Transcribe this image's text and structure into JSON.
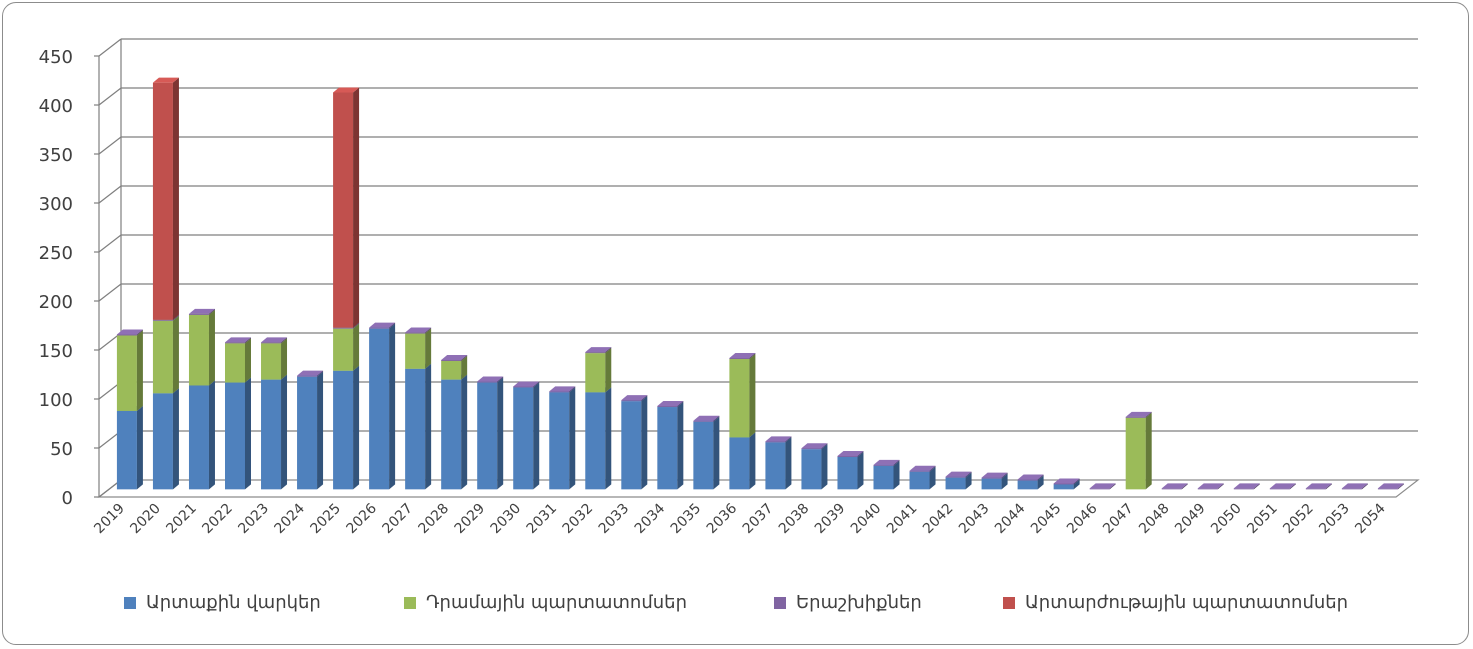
{
  "chart_data": {
    "type": "bar",
    "stacked": true,
    "three_d": true,
    "categories": [
      "2019",
      "2020",
      "2021",
      "2022",
      "2023",
      "2024",
      "2025",
      "2026",
      "2027",
      "2028",
      "2029",
      "2030",
      "2031",
      "2032",
      "2033",
      "2034",
      "2035",
      "2036",
      "2037",
      "2038",
      "2039",
      "2040",
      "2041",
      "2042",
      "2043",
      "2044",
      "2045",
      "2046",
      "2047",
      "2048",
      "2049",
      "2050",
      "2051",
      "2052",
      "2053",
      "2054"
    ],
    "series": [
      {
        "name": "Արտաքին վարկեր",
        "color": "#4f81bd",
        "values": [
          80,
          98,
          106,
          109,
          112,
          115,
          121,
          164,
          123,
          112,
          109,
          104,
          99,
          99,
          90,
          84,
          69,
          53,
          48,
          41,
          33,
          24,
          18,
          12,
          11,
          9,
          5,
          0,
          0,
          0,
          0,
          0,
          0,
          0,
          0,
          0
        ]
      },
      {
        "name": "Դրամային պարտատոմսեր",
        "color": "#9bbb59",
        "values": [
          77,
          74,
          72,
          40,
          37,
          0,
          43,
          0,
          36,
          19,
          0,
          0,
          0,
          40,
          0,
          0,
          0,
          80,
          0,
          0,
          0,
          0,
          0,
          0,
          0,
          0,
          0,
          0,
          73,
          0,
          0,
          0,
          0,
          0,
          0,
          0
        ]
      },
      {
        "name": "Երաշխիքներ",
        "color": "#8064a2",
        "values": [
          1,
          1,
          1,
          1,
          1,
          1,
          1,
          1,
          1,
          1,
          1,
          1,
          1,
          1,
          1,
          1,
          1,
          1,
          1,
          1,
          1,
          1,
          1,
          1,
          1,
          1,
          1,
          1,
          1,
          1,
          1,
          1,
          1,
          1,
          1,
          1
        ]
      },
      {
        "name": "Արտարժութային պարտատոմսեր",
        "color": "#c0504d",
        "values": [
          0,
          242,
          0,
          0,
          0,
          0,
          240,
          0,
          0,
          0,
          0,
          0,
          0,
          0,
          0,
          0,
          0,
          0,
          0,
          0,
          0,
          0,
          0,
          0,
          0,
          0,
          0,
          0,
          0,
          0,
          0,
          0,
          0,
          0,
          0,
          0
        ]
      }
    ],
    "yticks": [
      "0",
      "50",
      "100",
      "150",
      "200",
      "250",
      "300",
      "350",
      "400",
      "450"
    ],
    "ylim": [
      0,
      450
    ],
    "grid": true,
    "legend_position": "bottom"
  }
}
